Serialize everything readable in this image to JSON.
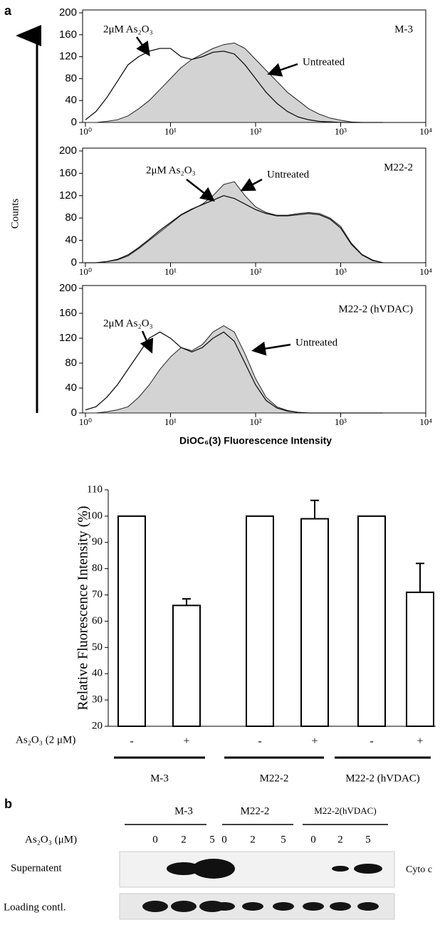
{
  "panel_a_label": "a",
  "histogram_y_label": "Counts",
  "histogram_x_label": "DiOC₆(3) Fluorescence Intensity",
  "chart_data": [
    {
      "type": "histogram",
      "title": "M-3",
      "xscale": "log",
      "xlim": [
        1,
        10000
      ],
      "ylim": [
        0,
        200
      ],
      "xticks": [
        {
          "value": 1,
          "label": "10⁰"
        },
        {
          "value": 10,
          "label": "10¹"
        },
        {
          "value": 100,
          "label": "10²"
        },
        {
          "value": 1000,
          "label": "10³"
        },
        {
          "value": 10000,
          "label": "10⁴"
        }
      ],
      "yticks": [
        0,
        40,
        80,
        120,
        160,
        200
      ],
      "x": [
        1,
        1.33,
        1.78,
        2.37,
        3.16,
        4.22,
        5.62,
        7.5,
        10,
        13.3,
        17.8,
        23.7,
        31.6,
        42.2,
        56.2,
        75,
        100,
        133,
        178,
        237,
        316,
        422,
        562,
        750,
        1000,
        1334,
        1778,
        2371,
        3162
      ],
      "series": [
        {
          "name": "Untreated",
          "color": "#222",
          "fill": "#d3d3d3",
          "values": [
            0,
            0,
            2,
            5,
            12,
            25,
            40,
            60,
            80,
            100,
            115,
            125,
            135,
            142,
            145,
            135,
            115,
            95,
            75,
            55,
            40,
            25,
            15,
            8,
            4,
            1,
            0,
            0,
            0
          ]
        },
        {
          "name": "2μM As₂O₃",
          "color": "#111",
          "values": [
            5,
            20,
            45,
            75,
            105,
            120,
            130,
            135,
            135,
            120,
            115,
            120,
            128,
            130,
            125,
            105,
            80,
            55,
            35,
            20,
            10,
            5,
            2,
            1,
            0,
            0,
            0,
            0,
            0
          ]
        }
      ]
    },
    {
      "type": "histogram",
      "title": "M22-2",
      "xscale": "log",
      "xlim": [
        1,
        10000
      ],
      "ylim": [
        0,
        200
      ],
      "xticks": [
        {
          "value": 1,
          "label": "10⁰"
        },
        {
          "value": 10,
          "label": "10¹"
        },
        {
          "value": 100,
          "label": "10²"
        },
        {
          "value": 1000,
          "label": "10³"
        },
        {
          "value": 10000,
          "label": "10⁴"
        }
      ],
      "yticks": [
        0,
        40,
        80,
        120,
        160,
        200
      ],
      "x": [
        1,
        1.33,
        1.78,
        2.37,
        3.16,
        4.22,
        5.62,
        7.5,
        10,
        13.3,
        17.8,
        23.7,
        31.6,
        42.2,
        56.2,
        75,
        100,
        133,
        178,
        237,
        316,
        422,
        562,
        750,
        1000,
        1334,
        1778,
        2371,
        3162
      ],
      "series": [
        {
          "name": "Untreated",
          "color": "#222",
          "fill": "#d3d3d3",
          "values": [
            0,
            0,
            2,
            5,
            12,
            25,
            40,
            55,
            70,
            85,
            95,
            105,
            120,
            140,
            145,
            120,
            100,
            90,
            85,
            85,
            88,
            90,
            88,
            80,
            65,
            35,
            15,
            5,
            0
          ]
        },
        {
          "name": "2μM As₂O₃",
          "color": "#111",
          "values": [
            0,
            0,
            2,
            6,
            14,
            27,
            42,
            58,
            72,
            86,
            96,
            104,
            112,
            120,
            115,
            105,
            95,
            88,
            84,
            84,
            86,
            88,
            86,
            78,
            62,
            33,
            14,
            4,
            0
          ]
        }
      ]
    },
    {
      "type": "histogram",
      "title": "M22-2 (hVDAC)",
      "xscale": "log",
      "xlim": [
        1,
        10000
      ],
      "ylim": [
        0,
        200
      ],
      "xticks": [
        {
          "value": 1,
          "label": "10⁰"
        },
        {
          "value": 10,
          "label": "10¹"
        },
        {
          "value": 100,
          "label": "10²"
        },
        {
          "value": 1000,
          "label": "10³"
        },
        {
          "value": 10000,
          "label": "10⁴"
        }
      ],
      "yticks": [
        0,
        40,
        80,
        120,
        160,
        200
      ],
      "x": [
        1,
        1.33,
        1.78,
        2.37,
        3.16,
        4.22,
        5.62,
        7.5,
        10,
        13.3,
        17.8,
        23.7,
        31.6,
        42.2,
        56.2,
        75,
        100,
        133,
        178,
        237,
        316,
        422,
        562,
        750,
        1000,
        1334,
        1778,
        2371,
        3162
      ],
      "series": [
        {
          "name": "Untreated",
          "color": "#222",
          "fill": "#d3d3d3",
          "values": [
            0,
            0,
            2,
            5,
            10,
            25,
            45,
            70,
            90,
            105,
            100,
            110,
            130,
            140,
            130,
            95,
            55,
            25,
            10,
            4,
            1,
            0,
            0,
            0,
            0,
            0,
            0,
            0,
            0
          ]
        },
        {
          "name": "2μM As₂O₃",
          "color": "#111",
          "values": [
            5,
            10,
            25,
            45,
            70,
            95,
            120,
            130,
            120,
            105,
            98,
            105,
            120,
            130,
            115,
            80,
            45,
            20,
            8,
            3,
            1,
            0,
            0,
            0,
            0,
            0,
            0,
            0,
            0
          ]
        }
      ]
    },
    {
      "type": "bar",
      "ylabel": "Relative Fluorescence Intensity (%)",
      "ylim": [
        20,
        110
      ],
      "yticks": [
        20,
        30,
        40,
        50,
        60,
        70,
        80,
        90,
        100,
        110
      ],
      "row_label": "As₂O₃ (2 μM)",
      "categories": [
        "-",
        "+",
        "-",
        "+",
        "-",
        "+"
      ],
      "groups": [
        "M-3",
        "M22-2",
        "M22-2 (hVDAC)"
      ],
      "values": [
        100,
        66,
        100,
        99,
        100,
        71
      ],
      "errors": [
        null,
        2.5,
        null,
        7,
        null,
        11
      ],
      "color": "#ffffff"
    }
  ],
  "blot": {
    "panel_label": "b",
    "groups": [
      "M-3",
      "M22-2",
      "M22-2(hVDAC)"
    ],
    "dose_label": "As₂O₃ (μM)",
    "doses": [
      "0",
      "2",
      "5",
      "0",
      "2",
      "5",
      "0",
      "2",
      "5"
    ],
    "rows": [
      {
        "label": "Supernatent",
        "side_label": "Cyto c"
      },
      {
        "label": "Loading contl."
      }
    ]
  }
}
